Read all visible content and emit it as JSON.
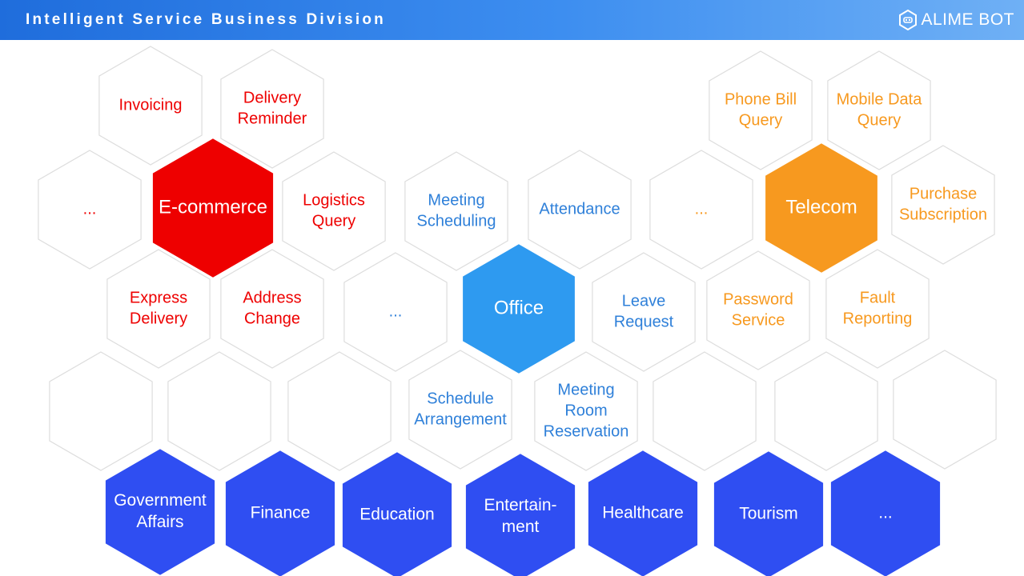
{
  "header": {
    "title": "Intelligent Service Business Division",
    "logo_text": "ALIME BOT",
    "logo_icon": "robot-head-icon"
  },
  "colors": {
    "ecommerce": "#ee0000",
    "telecom": "#f7991f",
    "office": "#2e9af0",
    "industry": "#2f4ef2",
    "outline": "#dddddd",
    "office_text": "#2f80d9"
  },
  "cells": [
    {
      "id": "invoicing",
      "lines": [
        "Invoicing"
      ],
      "style": "ecommerce-item"
    },
    {
      "id": "delivery-reminder",
      "lines": [
        "Delivery",
        "Reminder"
      ],
      "style": "ecommerce-item"
    },
    {
      "id": "ecommerce-more",
      "lines": [
        "..."
      ],
      "style": "ecommerce-item"
    },
    {
      "id": "ecommerce",
      "lines": [
        "E-commerce"
      ],
      "style": "ecommerce-hub"
    },
    {
      "id": "logistics-query",
      "lines": [
        "Logistics",
        "Query"
      ],
      "style": "ecommerce-item"
    },
    {
      "id": "express-delivery",
      "lines": [
        "Express",
        "Delivery"
      ],
      "style": "ecommerce-item"
    },
    {
      "id": "address-change",
      "lines": [
        "Address",
        "Change"
      ],
      "style": "ecommerce-item"
    },
    {
      "id": "meeting-scheduling",
      "lines": [
        "Meeting",
        "Scheduling"
      ],
      "style": "office-item"
    },
    {
      "id": "attendance",
      "lines": [
        "Attendance"
      ],
      "style": "office-item"
    },
    {
      "id": "office-more-top",
      "lines": [
        "..."
      ],
      "style": "telecom-item"
    },
    {
      "id": "office-more-left",
      "lines": [
        "..."
      ],
      "style": "office-item"
    },
    {
      "id": "office",
      "lines": [
        "Office"
      ],
      "style": "office-hub"
    },
    {
      "id": "leave-request",
      "lines": [
        "Leave",
        "Request"
      ],
      "style": "office-item"
    },
    {
      "id": "schedule-arrangement",
      "lines": [
        "Schedule",
        "Arrangement"
      ],
      "style": "office-item"
    },
    {
      "id": "meeting-room-reservation",
      "lines": [
        "Meeting",
        "Room",
        "Reservation"
      ],
      "style": "office-item"
    },
    {
      "id": "phone-bill-query",
      "lines": [
        "Phone Bill",
        "Query"
      ],
      "style": "telecom-item"
    },
    {
      "id": "mobile-data-query",
      "lines": [
        "Mobile Data",
        "Query"
      ],
      "style": "telecom-item"
    },
    {
      "id": "telecom",
      "lines": [
        "Telecom"
      ],
      "style": "telecom-hub"
    },
    {
      "id": "purchase-subscription",
      "lines": [
        "Purchase",
        "Subscription"
      ],
      "style": "telecom-item"
    },
    {
      "id": "password-service",
      "lines": [
        "Password",
        "Service"
      ],
      "style": "telecom-item"
    },
    {
      "id": "fault-reporting",
      "lines": [
        "Fault",
        "Reporting"
      ],
      "style": "telecom-item"
    },
    {
      "id": "empty-1",
      "lines": [],
      "style": "empty"
    },
    {
      "id": "empty-2",
      "lines": [],
      "style": "empty"
    },
    {
      "id": "empty-3",
      "lines": [],
      "style": "empty"
    },
    {
      "id": "empty-4",
      "lines": [],
      "style": "empty"
    },
    {
      "id": "empty-5",
      "lines": [],
      "style": "empty"
    },
    {
      "id": "empty-6",
      "lines": [],
      "style": "empty"
    },
    {
      "id": "government-affairs",
      "lines": [
        "Government",
        "Affairs"
      ],
      "style": "industry"
    },
    {
      "id": "finance",
      "lines": [
        "Finance"
      ],
      "style": "industry"
    },
    {
      "id": "education",
      "lines": [
        "Education"
      ],
      "style": "industry"
    },
    {
      "id": "entertainment",
      "lines": [
        "Entertain-",
        "ment"
      ],
      "style": "industry"
    },
    {
      "id": "healthcare",
      "lines": [
        "Healthcare"
      ],
      "style": "industry"
    },
    {
      "id": "tourism",
      "lines": [
        "Tourism"
      ],
      "style": "industry"
    },
    {
      "id": "industry-more",
      "lines": [
        "..."
      ],
      "style": "industry"
    }
  ]
}
